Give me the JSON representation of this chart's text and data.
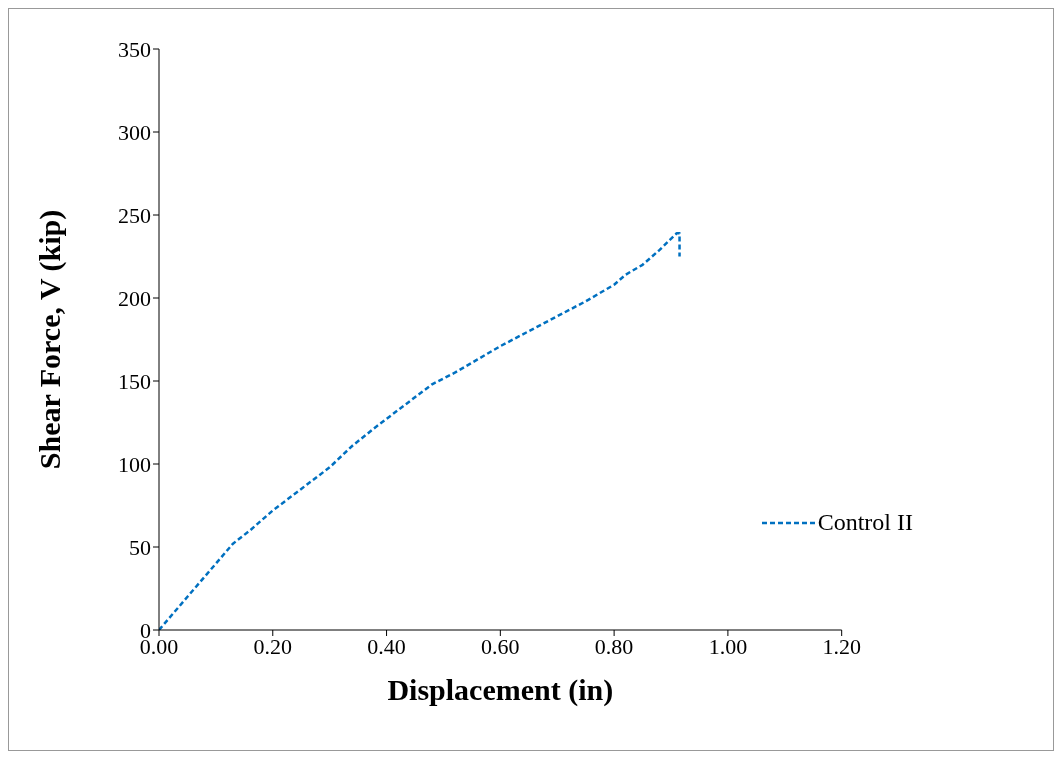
{
  "chart_data": {
    "type": "line",
    "xlabel": "Displacement (in)",
    "ylabel": "Shear Force, V (kip)",
    "xlim": [
      0,
      1.2
    ],
    "xticks": [
      {
        "value": 0,
        "label": "0.00"
      },
      {
        "value": 0.2,
        "label": "0.20"
      },
      {
        "value": 0.4,
        "label": "0.40"
      },
      {
        "value": 0.6,
        "label": "0.60"
      },
      {
        "value": 0.8,
        "label": "0.80"
      },
      {
        "value": 1,
        "label": "1.00"
      },
      {
        "value": 1.2,
        "label": "1.20"
      }
    ],
    "ylim": [
      0,
      350
    ],
    "yticks": [
      0,
      50,
      100,
      150,
      200,
      250,
      300,
      350
    ],
    "grid": false,
    "legend": "right",
    "marker": "none",
    "line_style": "dashed",
    "series": [
      {
        "name": "Control II",
        "color": "#0070c0",
        "x": [
          0,
          0.05,
          0.1,
          0.13,
          0.16,
          0.2,
          0.25,
          0.3,
          0.34,
          0.38,
          0.43,
          0.48,
          0.52,
          0.56,
          0.6,
          0.65,
          0.7,
          0.75,
          0.8,
          0.82,
          0.85,
          0.88,
          0.91,
          0.915,
          0.915
        ],
        "values": [
          0,
          20,
          40,
          52,
          60,
          72,
          85,
          98,
          111,
          122,
          135,
          148,
          155,
          163,
          171,
          180,
          189,
          198,
          208,
          214,
          220,
          229,
          239,
          239,
          225
        ]
      }
    ]
  }
}
